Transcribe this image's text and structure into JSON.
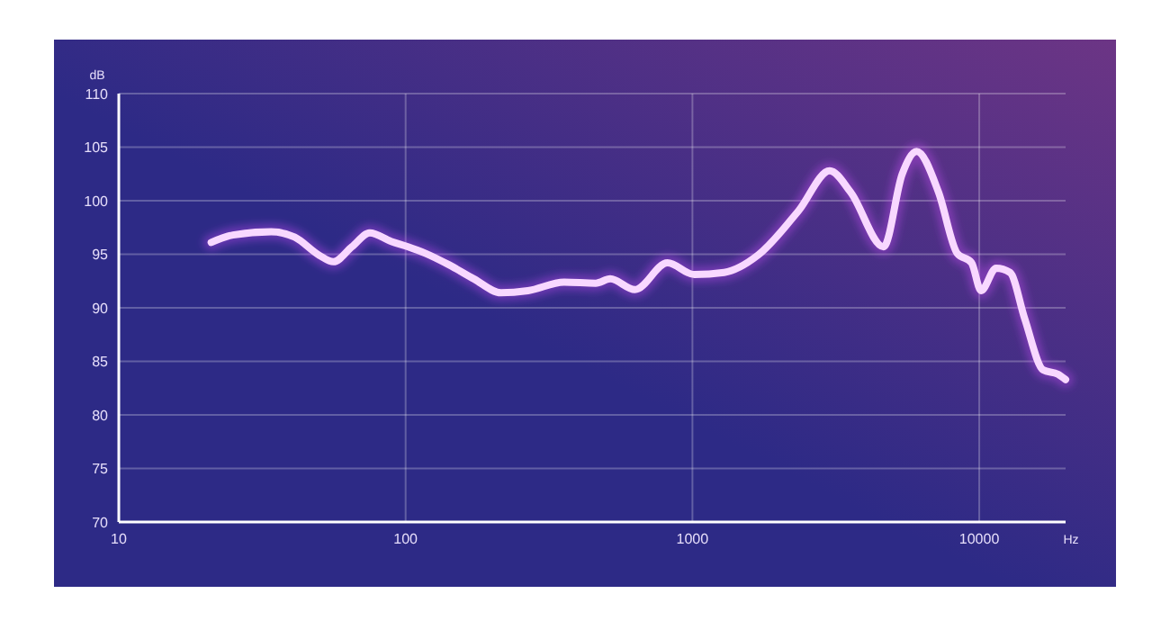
{
  "chart_data": {
    "type": "line",
    "xlabel": "Hz",
    "ylabel": "dB",
    "log": "x",
    "grid": true,
    "line_style": "solid",
    "marker": "none",
    "xlim": [
      10,
      20000
    ],
    "xticks": [
      10,
      100,
      1000,
      10000
    ],
    "ylim": [
      70,
      110
    ],
    "yticks": [
      70,
      75,
      80,
      85,
      90,
      95,
      100,
      105,
      110
    ],
    "series": [
      {
        "color": "#f8d8ff",
        "x": [
          21,
          25,
          34,
          41,
          50,
          56,
          65,
          75,
          89,
          102,
          117,
          142,
          173,
          215,
          267,
          357,
          460,
          517,
          630,
          818,
          1016,
          1290,
          1690,
          2350,
          3010,
          3560,
          4640,
          5390,
          6050,
          7210,
          8370,
          9400,
          10150,
          11450,
          12800,
          14400,
          16700,
          18800,
          20000
        ],
        "values": [
          96.1,
          96.8,
          97.1,
          96.6,
          94.9,
          94.3,
          95.7,
          97.0,
          96.2,
          95.7,
          95.1,
          94.0,
          92.7,
          91.4,
          91.6,
          92.4,
          92.3,
          92.7,
          91.7,
          94.2,
          93.1,
          93.3,
          94.9,
          99.1,
          102.8,
          100.8,
          95.7,
          102.5,
          104.6,
          100.8,
          95.1,
          94.2,
          91.6,
          93.7,
          93.3,
          89.0,
          84.2,
          83.8,
          83.3
        ]
      }
    ]
  }
}
